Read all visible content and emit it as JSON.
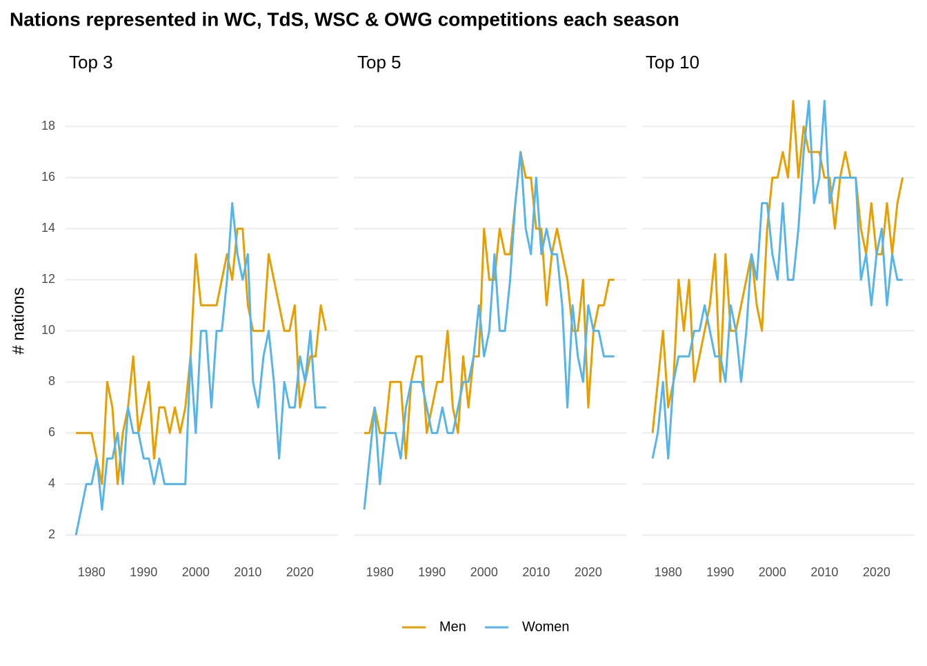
{
  "title": "Nations represented in WC, TdS, WSC & OWG competitions each season",
  "y_label": "# nations",
  "legend": [
    {
      "name": "Men",
      "color": "#E69F00"
    },
    {
      "name": "Women",
      "color": "#56B4E9"
    }
  ],
  "chart_data": [
    {
      "type": "line",
      "title": "Top 3",
      "x": [
        1977,
        1978,
        1979,
        1980,
        1981,
        1982,
        1983,
        1984,
        1985,
        1986,
        1987,
        1988,
        1989,
        1990,
        1991,
        1992,
        1993,
        1994,
        1995,
        1996,
        1997,
        1998,
        1999,
        2000,
        2001,
        2002,
        2003,
        2004,
        2005,
        2006,
        2007,
        2008,
        2009,
        2010,
        2011,
        2012,
        2013,
        2014,
        2015,
        2016,
        2017,
        2018,
        2019,
        2020,
        2021,
        2022,
        2023,
        2024,
        2025
      ],
      "series": [
        {
          "values": [
            6,
            6,
            6,
            6,
            5,
            4,
            8,
            7,
            4,
            6,
            7,
            9,
            6,
            7,
            8,
            5,
            7,
            7,
            6,
            7,
            6,
            7,
            9,
            13,
            11,
            11,
            11,
            11,
            12,
            13,
            12,
            14,
            14,
            11,
            10,
            10,
            10,
            13,
            12,
            11,
            10,
            10,
            11,
            7,
            8,
            9,
            9,
            11,
            10
          ]
        },
        {
          "values": [
            2,
            3,
            4,
            4,
            5,
            3,
            5,
            5,
            6,
            4,
            7,
            6,
            6,
            5,
            5,
            4,
            5,
            4,
            4,
            4,
            4,
            4,
            9,
            6,
            10,
            10,
            7,
            10,
            10,
            12,
            15,
            13,
            12,
            13,
            8,
            7,
            9,
            10,
            8,
            5,
            8,
            7,
            7,
            9,
            8,
            10,
            7,
            7,
            7
          ]
        }
      ],
      "xlim": [
        1975,
        2027.3
      ],
      "xticks": [
        1980,
        1990,
        2000,
        2010,
        2020
      ],
      "ylim": [
        1.2,
        18.9
      ],
      "yticks": [
        2,
        4,
        6,
        8,
        10,
        12,
        14,
        16,
        18
      ],
      "grid": true
    },
    {
      "type": "line",
      "title": "Top 5",
      "x": [
        1977,
        1978,
        1979,
        1980,
        1981,
        1982,
        1983,
        1984,
        1985,
        1986,
        1987,
        1988,
        1989,
        1990,
        1991,
        1992,
        1993,
        1994,
        1995,
        1996,
        1997,
        1998,
        1999,
        2000,
        2001,
        2002,
        2003,
        2004,
        2005,
        2006,
        2007,
        2008,
        2009,
        2010,
        2011,
        2012,
        2013,
        2014,
        2015,
        2016,
        2017,
        2018,
        2019,
        2020,
        2021,
        2022,
        2023,
        2024,
        2025
      ],
      "series": [
        {
          "values": [
            6,
            6,
            7,
            6,
            6,
            8,
            8,
            8,
            5,
            8,
            9,
            9,
            6,
            7,
            8,
            8,
            10,
            7,
            6,
            9,
            7,
            9,
            9,
            14,
            12,
            12,
            14,
            13,
            13,
            15,
            17,
            16,
            16,
            14,
            14,
            11,
            13,
            14,
            13,
            12,
            10,
            10,
            12,
            7,
            10,
            11,
            11,
            12,
            12
          ]
        },
        {
          "values": [
            3,
            5,
            7,
            4,
            6,
            6,
            6,
            5,
            7,
            8,
            8,
            8,
            7,
            6,
            6,
            7,
            6,
            6,
            7,
            8,
            8,
            9,
            11,
            9,
            10,
            13,
            10,
            10,
            12,
            15,
            17,
            14,
            13,
            16,
            13,
            14,
            13,
            13,
            11,
            7,
            11,
            9,
            8,
            11,
            10,
            10,
            9,
            9,
            9
          ]
        }
      ],
      "xlim": [
        1975,
        2027.3
      ],
      "xticks": [
        1980,
        1990,
        2000,
        2010,
        2020
      ],
      "ylim": [
        1.2,
        18.9
      ],
      "yticks": [
        2,
        4,
        6,
        8,
        10,
        12,
        14,
        16,
        18
      ],
      "grid": true
    },
    {
      "type": "line",
      "title": "Top 10",
      "x": [
        1977,
        1978,
        1979,
        1980,
        1981,
        1982,
        1983,
        1984,
        1985,
        1986,
        1987,
        1988,
        1989,
        1990,
        1991,
        1992,
        1993,
        1994,
        1995,
        1996,
        1997,
        1998,
        1999,
        2000,
        2001,
        2002,
        2003,
        2004,
        2005,
        2006,
        2007,
        2008,
        2009,
        2010,
        2011,
        2012,
        2013,
        2014,
        2015,
        2016,
        2017,
        2018,
        2019,
        2020,
        2021,
        2022,
        2023,
        2024,
        2025
      ],
      "series": [
        {
          "values": [
            6,
            8,
            10,
            7,
            8,
            12,
            10,
            12,
            8,
            9,
            10,
            11,
            13,
            8,
            13,
            10,
            10,
            11,
            12,
            13,
            11,
            10,
            14,
            16,
            16,
            17,
            16,
            19,
            16,
            18,
            17,
            17,
            17,
            16,
            16,
            14,
            16,
            17,
            16,
            16,
            14,
            13,
            15,
            13,
            13,
            15,
            13,
            15,
            16
          ]
        },
        {
          "values": [
            5,
            6,
            8,
            5,
            8,
            9,
            9,
            9,
            10,
            10,
            11,
            10,
            9,
            9,
            8,
            11,
            10,
            8,
            10,
            13,
            12,
            15,
            15,
            13,
            12,
            15,
            12,
            12,
            14,
            17,
            19,
            15,
            16,
            19,
            15,
            16,
            16,
            16,
            16,
            16,
            12,
            13,
            11,
            13,
            14,
            11,
            13,
            12,
            12
          ]
        }
      ],
      "xlim": [
        1975,
        2027.3
      ],
      "xticks": [
        1980,
        1990,
        2000,
        2010,
        2020
      ],
      "ylim": [
        1.2,
        18.9
      ],
      "yticks": [
        2,
        4,
        6,
        8,
        10,
        12,
        14,
        16,
        18
      ],
      "grid": true
    }
  ]
}
